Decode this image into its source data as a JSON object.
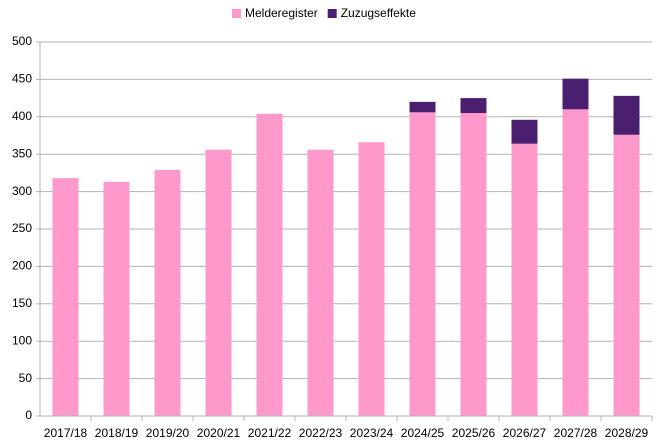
{
  "chart_data": {
    "type": "stacked_bar",
    "categories": [
      "2017/18",
      "2018/19",
      "2019/20",
      "2020/21",
      "2021/22",
      "2022/23",
      "2023/24",
      "2024/25",
      "2025/26",
      "2026/27",
      "2027/28",
      "2028/29"
    ],
    "series": [
      {
        "name": "Melderegister",
        "color": "#ff99cc",
        "values": [
          318,
          313,
          329,
          356,
          404,
          356,
          366,
          406,
          405,
          364,
          410,
          376
        ]
      },
      {
        "name": "Zuzugseffekte",
        "color": "#4b1f6f",
        "values": [
          null,
          null,
          null,
          null,
          null,
          null,
          null,
          14,
          20,
          32,
          41,
          52
        ]
      }
    ],
    "ylim": [
      0,
      500
    ],
    "yticks": [
      0,
      50,
      100,
      150,
      200,
      250,
      300,
      350,
      400,
      450,
      500
    ],
    "grid": true,
    "legend": "top"
  }
}
